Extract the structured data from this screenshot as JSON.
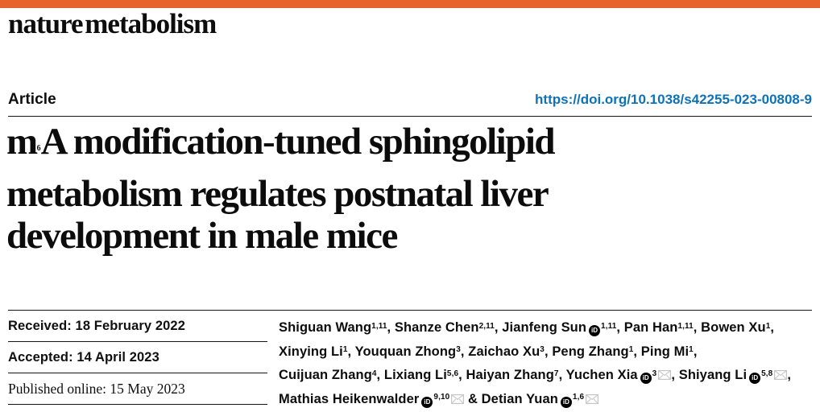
{
  "page": {
    "accent_color": "#e8622c",
    "doi_color": "#0e72b7",
    "text_color": "#121212",
    "mail_icon_color": "#c6c6c6"
  },
  "masthead": {
    "journal": "nature metabolism"
  },
  "article_bar": {
    "label": "Article",
    "doi": "https://doi.org/10.1038/s42255-023-00808-9"
  },
  "title": {
    "lines": [
      "m{6}A modification-tuned sphingolipid",
      "metabolism regulates postnatal liver",
      "development in male mice"
    ],
    "plain": "m6A modification-tuned sphingolipid metabolism regulates postnatal liver development in male mice"
  },
  "dates": {
    "received": "Received: 18 February 2022",
    "accepted": "Accepted: 14 April 2023",
    "published": "Published online: 15 May 2023"
  },
  "authors": {
    "lines": [
      "Shiguan Wang{1,11}, Shanze Chen{2,11}, Jianfeng Sun[orcid]{1,11}, Pan Han{1,11}, Bowen Xu{1},",
      "Xinying Li{1}, Youquan Zhong{3}, Zaichao Xu{3}, Peng Zhang{1}, Ping Mi{1},",
      "Cuijuan Zhang{4}, Lixiang Li{5,6}, Haiyan Zhang{7}, Yuchen Xia[orcid]{3}[mail], Shiyang Li[orcid]{5,8}[mail],",
      "Mathias Heikenwalder[orcid]{9,10}[mail] & Detian Yuan[orcid]{1,6}[mail]"
    ],
    "orcid_label": "iD"
  }
}
